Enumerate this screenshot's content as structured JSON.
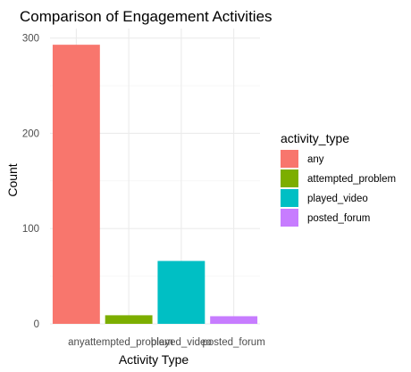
{
  "chart_data": {
    "type": "bar",
    "title": "Comparison of Engagement Activities",
    "xlabel": "Activity Type",
    "ylabel": "Count",
    "categories": [
      "any",
      "attempted_problem",
      "played_video",
      "posted_forum"
    ],
    "values": [
      293,
      9,
      66,
      8
    ],
    "colors": [
      "#F8766D",
      "#7CAE00",
      "#00BFC4",
      "#C77CFF"
    ],
    "ylim": [
      0,
      310
    ],
    "yticks": [
      0,
      100,
      200,
      300
    ],
    "grid": true,
    "legend": {
      "title": "activity_type",
      "placement": "right",
      "entries": [
        "any",
        "attempted_problem",
        "played_video",
        "posted_forum"
      ]
    }
  }
}
